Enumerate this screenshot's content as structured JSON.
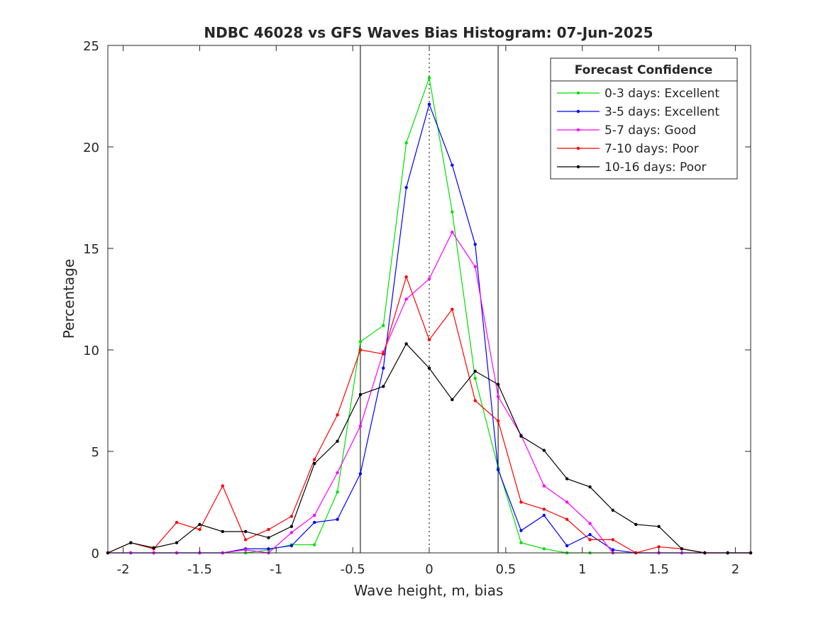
{
  "chart_data": {
    "type": "line",
    "title": "NDBC 46028 vs GFS Waves Bias Histogram: 07-Jun-2025",
    "xlabel": "Wave height, m, bias",
    "ylabel": "Percentage",
    "xlim": [
      -2.1,
      2.1
    ],
    "ylim": [
      0,
      25
    ],
    "xticks": [
      -2,
      -1.5,
      -1,
      -0.5,
      0,
      0.5,
      1,
      1.5,
      2
    ],
    "xtick_labels": [
      "-2",
      "-1.5",
      "-1",
      "-0.5",
      "0",
      "0.5",
      "1",
      "1.5",
      "2"
    ],
    "yticks": [
      0,
      5,
      10,
      15,
      20,
      25
    ],
    "ytick_labels": [
      "0",
      "5",
      "10",
      "15",
      "20",
      "25"
    ],
    "grid": false,
    "reference_lines": {
      "solid_x": [
        -0.45,
        0.45
      ],
      "dotted_x": [
        0
      ]
    },
    "legend": {
      "title": "Forecast Confidence",
      "position": "top-right"
    },
    "x": [
      -2.1,
      -1.95,
      -1.8,
      -1.65,
      -1.5,
      -1.35,
      -1.2,
      -1.05,
      -0.9,
      -0.75,
      -0.6,
      -0.45,
      -0.3,
      -0.15,
      0,
      0.15,
      0.3,
      0.45,
      0.6,
      0.75,
      0.9,
      1.05,
      1.2,
      1.35,
      1.5,
      1.65,
      1.8,
      1.95,
      2.1
    ],
    "series": [
      {
        "name": "0-3 days: Excellent",
        "color": "#00e000",
        "values": [
          0,
          0,
          0,
          0,
          0,
          0,
          0,
          0.15,
          0.4,
          0.4,
          3.0,
          10.4,
          11.2,
          20.2,
          23.4,
          16.8,
          8.6,
          4.2,
          0.5,
          0.2,
          0,
          0,
          0,
          0,
          0,
          0,
          0,
          0,
          0
        ]
      },
      {
        "name": "3-5 days: Excellent",
        "color": "#0000ff",
        "values": [
          0,
          0,
          0,
          0,
          0,
          0,
          0.2,
          0.2,
          0.35,
          1.5,
          1.65,
          3.9,
          9.1,
          18.0,
          22.1,
          19.1,
          15.2,
          4.1,
          1.1,
          1.85,
          0.35,
          0.9,
          0.15,
          0,
          0,
          0,
          0,
          0,
          0
        ]
      },
      {
        "name": "5-7 days: Good",
        "color": "#ff00ff",
        "values": [
          0,
          0,
          0,
          0,
          0,
          0,
          0.15,
          0,
          1.0,
          1.85,
          3.95,
          6.25,
          9.9,
          12.5,
          13.5,
          15.8,
          14.1,
          7.7,
          5.8,
          3.3,
          2.5,
          1.45,
          0,
          0,
          0,
          0,
          0,
          0,
          0
        ]
      },
      {
        "name": "7-10 days: Poor",
        "color": "#ff0000",
        "values": [
          0,
          0.5,
          0.2,
          1.5,
          1.15,
          3.3,
          0.65,
          1.15,
          1.8,
          4.6,
          6.8,
          10.0,
          9.8,
          13.6,
          10.5,
          12.0,
          7.5,
          6.5,
          2.5,
          2.15,
          1.65,
          0.65,
          0.65,
          0,
          0.3,
          0.2,
          0,
          0,
          0
        ]
      },
      {
        "name": "10-16 days: Poor",
        "color": "#000000",
        "values": [
          0,
          0.5,
          0.25,
          0.5,
          1.4,
          1.05,
          1.05,
          0.75,
          1.3,
          4.4,
          5.5,
          7.8,
          8.2,
          10.3,
          9.1,
          7.55,
          8.95,
          8.3,
          5.75,
          5.05,
          3.65,
          3.25,
          2.1,
          1.4,
          1.3,
          0.2,
          0,
          0,
          0
        ]
      }
    ]
  }
}
